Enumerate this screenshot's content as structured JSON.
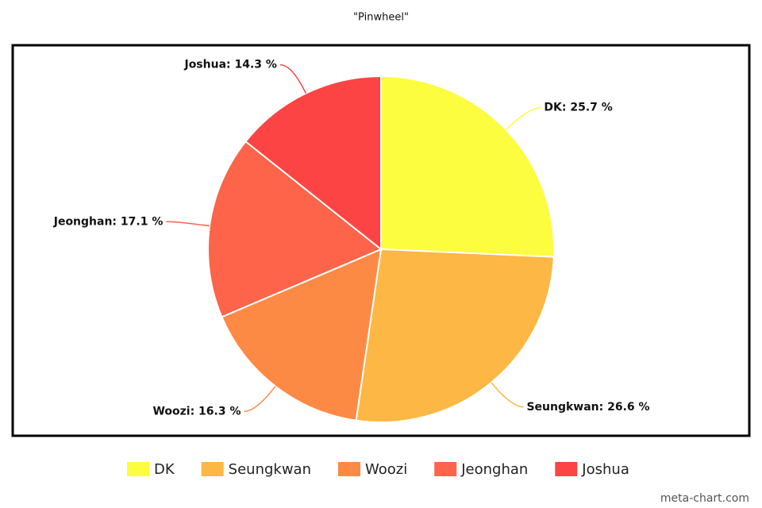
{
  "chart_data": {
    "type": "pie",
    "title": "\"Pinwheel\"",
    "categories": [
      "DK",
      "Seungkwan",
      "Woozi",
      "Jeonghan",
      "Joshua"
    ],
    "values": [
      25.7,
      26.6,
      16.3,
      17.1,
      14.3
    ],
    "value_labels": [
      "DK: 25.7 %",
      "Seungkwan: 26.6 %",
      "Woozi: 16.3 %",
      "Jeonghan: 17.1 %",
      "Joshua: 14.3 %"
    ],
    "colors": [
      "#fdfd3f",
      "#fdb744",
      "#fd8a44",
      "#fd644a",
      "#fd4444"
    ],
    "legend": "bottom",
    "watermark": "meta-chart.com"
  }
}
